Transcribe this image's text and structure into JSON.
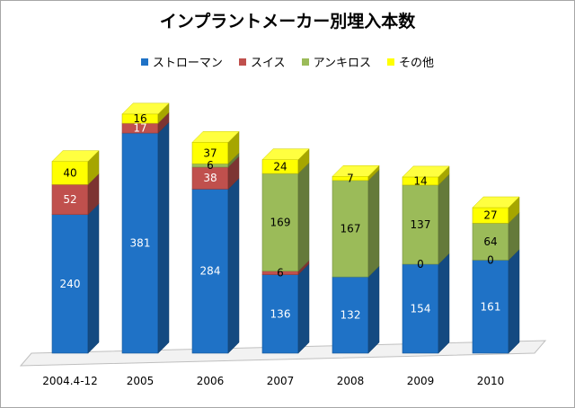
{
  "colors": {
    "ストローマン": "#1f72c6",
    "スイス": "#c0504d",
    "アンキロス": "#9bbb59",
    "その他": "#ffff00"
  },
  "chart_data": {
    "type": "bar",
    "stacked": true,
    "style": "3d-column",
    "title": "インプラントメーカー別埋入本数",
    "legend_position": "top",
    "categories": [
      "2004.4-12",
      "2005",
      "2006",
      "2007",
      "2008",
      "2009",
      "2010"
    ],
    "series": [
      {
        "name": "ストローマン",
        "values": [
          240,
          381,
          284,
          136,
          132,
          154,
          161
        ]
      },
      {
        "name": "スイス",
        "values": [
          52,
          17,
          38,
          6,
          0,
          0,
          0
        ]
      },
      {
        "name": "アンキロス",
        "values": [
          0,
          0,
          6,
          169,
          167,
          137,
          64
        ]
      },
      {
        "name": "その他",
        "values": [
          40,
          16,
          37,
          24,
          7,
          14,
          27
        ]
      }
    ],
    "data_labels": [
      [
        "240",
        "52",
        "",
        "40"
      ],
      [
        "381",
        "17",
        "",
        "16"
      ],
      [
        "284",
        "38",
        "6",
        "37"
      ],
      [
        "136",
        "6",
        "169",
        "24"
      ],
      [
        "132",
        "",
        "167",
        "7"
      ],
      [
        "154",
        "0",
        "137",
        "14"
      ],
      [
        "161",
        "0",
        "64",
        "27"
      ]
    ],
    "ylim": [
      0,
      420
    ],
    "grid": false,
    "xlabel": "",
    "ylabel": ""
  }
}
